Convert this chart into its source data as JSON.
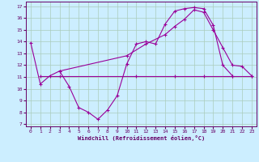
{
  "xlabel": "Windchill (Refroidissement éolien,°C)",
  "bg_color": "#cceeff",
  "grid_color": "#aaccbb",
  "line_color": "#990099",
  "xlim": [
    -0.5,
    23.5
  ],
  "ylim": [
    6.8,
    17.4
  ],
  "yticks": [
    7,
    8,
    9,
    10,
    11,
    12,
    13,
    14,
    15,
    16,
    17
  ],
  "xticks": [
    0,
    1,
    2,
    3,
    4,
    5,
    6,
    7,
    8,
    9,
    10,
    11,
    12,
    13,
    14,
    15,
    16,
    17,
    18,
    19,
    20,
    21,
    22,
    23
  ],
  "curve1_x": [
    0,
    1,
    2,
    3,
    4,
    5,
    6,
    7,
    8,
    9,
    10,
    11,
    12,
    13,
    14,
    15,
    16,
    17,
    18,
    19,
    20,
    21
  ],
  "curve1_y": [
    13.9,
    10.4,
    11.1,
    11.5,
    10.2,
    8.4,
    8.0,
    7.4,
    8.2,
    9.4,
    12.1,
    13.8,
    14.0,
    13.8,
    15.5,
    16.6,
    16.8,
    16.9,
    16.8,
    15.4,
    12.0,
    11.1
  ],
  "curve2_x": [
    3,
    10,
    12,
    14,
    15,
    16,
    17,
    18,
    19,
    20,
    21,
    22,
    23
  ],
  "curve2_y": [
    11.5,
    12.8,
    13.8,
    14.6,
    15.3,
    15.9,
    16.7,
    16.5,
    15.0,
    13.5,
    12.0,
    11.9,
    11.1
  ],
  "curve3_x": [
    1,
    3,
    11,
    15,
    18,
    21,
    23
  ],
  "curve3_y": [
    11.1,
    11.1,
    11.1,
    11.1,
    11.1,
    11.1,
    11.1
  ]
}
